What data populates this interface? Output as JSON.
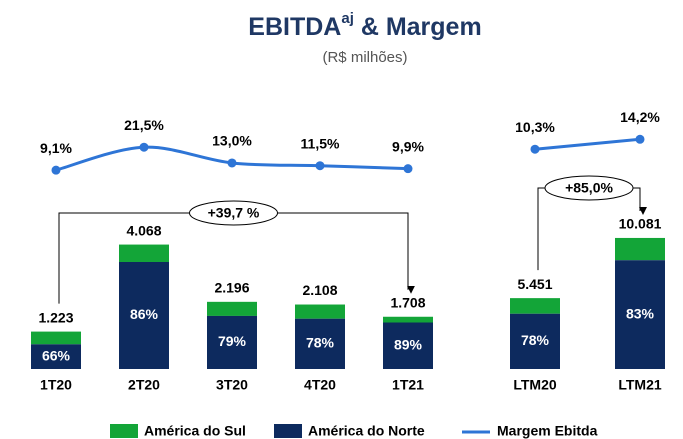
{
  "chart_data": [
    {
      "type": "bar_line",
      "title": [
        "EBITDA",
        "aj",
        " & Margem"
      ],
      "subtitle": "(R$ milhões)",
      "categories": [
        "1T20",
        "2T20",
        "3T20",
        "4T20",
        "1T21"
      ],
      "totals": [
        1223,
        4068,
        2196,
        2108,
        1708
      ],
      "total_labels": [
        "1.223",
        "4.068",
        "2.196",
        "2.108",
        "1.708"
      ],
      "series": [
        {
          "name": "América do Norte",
          "color": "#0d2a5e",
          "values": [
            66,
            86,
            79,
            78,
            89
          ],
          "value_labels": [
            "66%",
            "86%",
            "79%",
            "78%",
            "89%"
          ]
        },
        {
          "name": "América do Sul",
          "color": "#13a538",
          "values": [
            34,
            14,
            21,
            22,
            11
          ]
        }
      ],
      "line": {
        "name": "Margem Ebitda",
        "color": "#2e75d6",
        "values": [
          9.1,
          21.5,
          13.0,
          11.5,
          9.9
        ],
        "value_labels": [
          "9,1%",
          "21,5%",
          "13,0%",
          "11,5%",
          "9,9%"
        ]
      },
      "ylim": [
        0,
        5100
      ],
      "y2lim": [
        -20,
        60
      ],
      "annotation": "+39,7 %"
    },
    {
      "type": "bar_line",
      "categories": [
        "LTM20",
        "LTM21"
      ],
      "totals": [
        5451,
        10081
      ],
      "total_labels": [
        "5.451",
        "10.081"
      ],
      "series": [
        {
          "color": "#0d2a5e",
          "values": [
            78,
            83
          ],
          "value_labels": [
            "78%",
            "83%"
          ]
        },
        {
          "color": "#13a538",
          "values": [
            22,
            17
          ]
        }
      ],
      "line": {
        "color": "#2e75d6",
        "values": [
          10.3,
          14.2
        ],
        "value_labels": [
          "10,3%",
          "14,2%"
        ]
      },
      "ylim": [
        0,
        12000
      ],
      "y2lim": [
        -19,
        39
      ],
      "annotation": "+85,0%"
    }
  ]
}
